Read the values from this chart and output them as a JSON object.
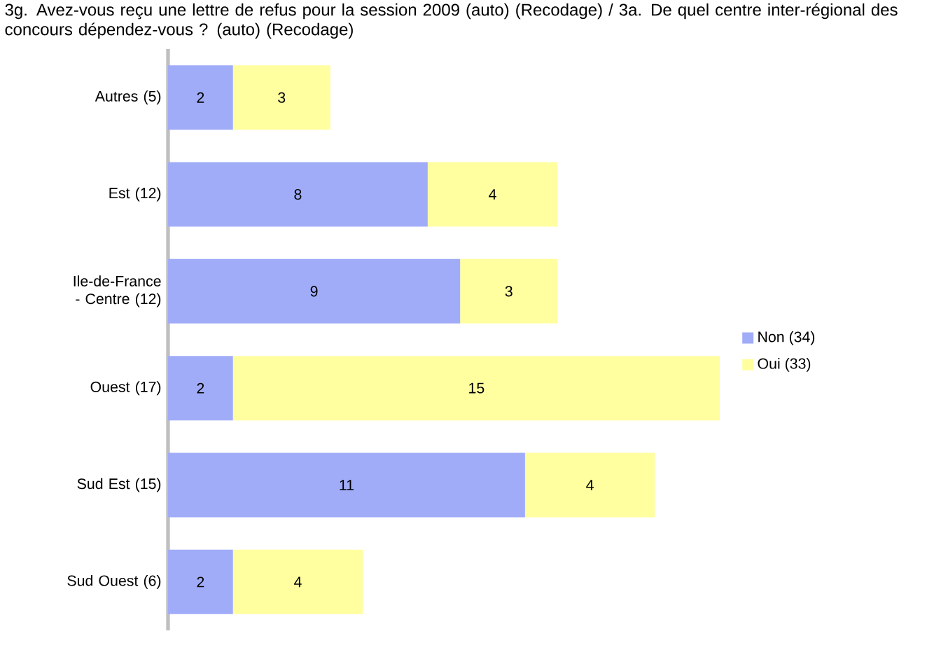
{
  "chart_data": {
    "type": "bar",
    "orientation": "horizontal",
    "stacked": true,
    "title": "3g. Avez-vous reçu une lettre de refus pour la session 2009 (auto) (Recodage) / 3a. De quel centre inter-régional des concours dépendez-vous ? (auto) (Recodage)",
    "categories": [
      "Autres (5)",
      "Est (12)",
      "Ile-de-France - Centre (12)",
      "Ouest (17)",
      "Sud Est (15)",
      "Sud Ouest (6)"
    ],
    "series": [
      {
        "name": "Non (34)",
        "color": "#a0acf8",
        "values": [
          2,
          8,
          9,
          2,
          11,
          2
        ]
      },
      {
        "name": "Oui (33)",
        "color": "#ffffa0",
        "values": [
          3,
          4,
          3,
          15,
          4,
          4
        ]
      }
    ],
    "tick_labels": "y",
    "data_labels": true,
    "legend": "right",
    "grid": false
  }
}
